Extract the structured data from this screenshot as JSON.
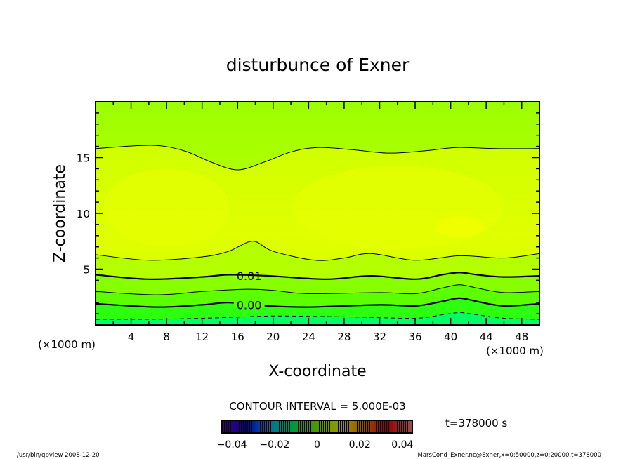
{
  "chart_data": {
    "type": "contour",
    "title": "disturbunce of Exner",
    "xlabel": "X-coordinate",
    "ylabel": "Z-coordinate",
    "x_unit": "(×1000 m)",
    "y_unit": "(×1000 m)",
    "xlim": [
      0,
      50
    ],
    "ylim": [
      0,
      20
    ],
    "x_ticks": [
      4,
      8,
      12,
      16,
      20,
      24,
      28,
      32,
      36,
      40,
      44,
      48
    ],
    "y_ticks": [
      5,
      10,
      15
    ],
    "contour_interval_text": "CONTOUR INTERVAL = 5.000E-03",
    "time_text": "t=378000 s",
    "contours": [
      {
        "level": -0.005,
        "style": "dashed",
        "x": [
          0,
          6,
          12,
          16,
          20,
          26,
          30,
          36,
          39,
          41,
          43,
          46,
          50
        ],
        "z": [
          0.5,
          0.5,
          0.6,
          0.7,
          0.8,
          0.75,
          0.7,
          0.6,
          0.9,
          1.1,
          0.9,
          0.6,
          0.5
        ]
      },
      {
        "level": 0.0,
        "style": "thick",
        "label": "0.00",
        "label_x": 17.3,
        "label_z": 1.8,
        "x": [
          0,
          7,
          12,
          15,
          19.5,
          24,
          32,
          36,
          39,
          41,
          43,
          46,
          50
        ],
        "z": [
          1.9,
          1.6,
          1.8,
          2.0,
          1.7,
          1.6,
          1.8,
          1.7,
          2.1,
          2.4,
          2.1,
          1.7,
          1.9
        ]
      },
      {
        "level": 0.005,
        "style": "thin",
        "x": [
          0,
          7,
          12,
          17,
          20,
          24,
          32,
          36,
          39,
          41,
          43,
          46,
          50
        ],
        "z": [
          3.0,
          2.7,
          3.0,
          3.2,
          3.1,
          2.8,
          2.9,
          2.8,
          3.3,
          3.6,
          3.3,
          2.9,
          3.0
        ]
      },
      {
        "level": 0.01,
        "style": "thick",
        "label": "0.01",
        "label_x": 17.3,
        "label_z": 4.4,
        "x": [
          0,
          6,
          12,
          15,
          19.5,
          26,
          31,
          36,
          39,
          41,
          43,
          46,
          50
        ],
        "z": [
          4.5,
          4.1,
          4.3,
          4.5,
          4.4,
          4.1,
          4.4,
          4.1,
          4.5,
          4.7,
          4.5,
          4.3,
          4.4
        ]
      },
      {
        "level": 0.015,
        "style": "thin",
        "x": [
          0,
          6,
          12,
          15,
          17.7,
          20,
          24.7,
          28,
          31,
          36,
          41,
          46,
          50
        ],
        "z": [
          6.3,
          5.8,
          6.1,
          6.6,
          7.5,
          6.6,
          5.8,
          6.0,
          6.4,
          5.8,
          6.2,
          6.0,
          6.4
        ]
      },
      {
        "level": 0.02,
        "style": "thin",
        "x": [
          0,
          6.3,
          10,
          13,
          16,
          19,
          22,
          25,
          29,
          33,
          37,
          40.7,
          45,
          50
        ],
        "z": [
          15.8,
          16.1,
          15.6,
          14.6,
          13.9,
          14.6,
          15.5,
          15.9,
          15.7,
          15.4,
          15.6,
          15.9,
          15.8,
          15.8
        ]
      }
    ],
    "fill_colors": [
      "#00ff66",
      "#22ff22",
      "#55ff00",
      "#88ff00",
      "#b8ff00",
      "#d8ff00",
      "#c8ff00"
    ],
    "colorbar": {
      "ticks": [
        "-0.04",
        "-0.02",
        "0",
        "0.02",
        "0.04"
      ],
      "range": [
        -0.045,
        0.045
      ],
      "colors": [
        "#7000c0",
        "#0000ff",
        "#00c0ff",
        "#00ff60",
        "#80ff00",
        "#ffff00",
        "#ff8000",
        "#ff0000",
        "#ff8080"
      ]
    }
  },
  "footer": {
    "left": "/usr/bin/gpview   2008-12-20",
    "right": "MarsCond_Exner.nc@Exner,x=0:50000,z=0:20000,t=378000"
  }
}
